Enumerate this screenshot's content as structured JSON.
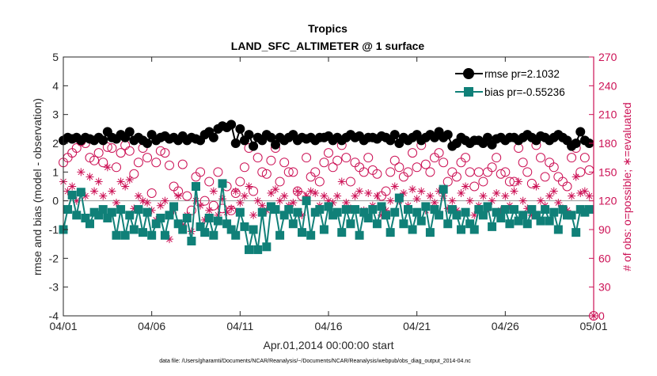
{
  "chart_data": {
    "type": "line",
    "title_line1": "Tropics",
    "title_line2": "LAND_SFC_ALTIMETER @ 1 surface",
    "xlabel": "Apr.01,2014 00:00:00 start",
    "ylabel_left": "rmse and bias (model - observation)",
    "ylabel_right": "# of obs: o=possible; ∗=evaluated",
    "footer": "data file: /Users/gharamti/Documents/NCAR/Reanalysis/~/Documents/NCAR/Reanalysis/webpub/obs_diag_output_2014-04.nc",
    "xlim": [
      0,
      30
    ],
    "x_ticks": [
      {
        "value": 0,
        "label": "04/01"
      },
      {
        "value": 5,
        "label": "04/06"
      },
      {
        "value": 10,
        "label": "04/11"
      },
      {
        "value": 15,
        "label": "04/16"
      },
      {
        "value": 20,
        "label": "04/21"
      },
      {
        "value": 25,
        "label": "04/26"
      },
      {
        "value": 30,
        "label": "05/01"
      }
    ],
    "ylim_left": [
      -4,
      5
    ],
    "y_ticks_left": [
      -4,
      -3,
      -2,
      -1,
      0,
      1,
      2,
      3,
      4,
      5
    ],
    "ylim_right": [
      0,
      270
    ],
    "y_ticks_right": [
      0,
      30,
      60,
      90,
      120,
      150,
      180,
      210,
      240,
      270
    ],
    "zero_line": 0,
    "legend": [
      {
        "name": "rmse",
        "label": "rmse pr=2.1032",
        "marker": "circle"
      },
      {
        "name": "bias",
        "label": "bias pr=-0.55236",
        "marker": "square"
      }
    ],
    "series": [
      {
        "name": "rmse",
        "color": "#000000",
        "axis": "left",
        "x": [
          0,
          0.25,
          0.5,
          0.75,
          1,
          1.25,
          1.5,
          1.75,
          2,
          2.25,
          2.5,
          2.75,
          3,
          3.25,
          3.5,
          3.75,
          4,
          4.25,
          4.5,
          4.75,
          5,
          5.25,
          5.5,
          5.75,
          6,
          6.25,
          6.5,
          6.75,
          7,
          7.25,
          7.5,
          7.75,
          8,
          8.25,
          8.5,
          8.75,
          9,
          9.25,
          9.5,
          9.75,
          10,
          10.25,
          10.5,
          10.75,
          11,
          11.25,
          11.5,
          11.75,
          12,
          12.25,
          12.5,
          12.75,
          13,
          13.25,
          13.5,
          13.75,
          14,
          14.25,
          14.5,
          14.75,
          15,
          15.25,
          15.5,
          15.75,
          16,
          16.25,
          16.5,
          16.75,
          17,
          17.25,
          17.5,
          17.75,
          18,
          18.25,
          18.5,
          18.75,
          19,
          19.25,
          19.5,
          19.75,
          20,
          20.25,
          20.5,
          20.75,
          21,
          21.25,
          21.5,
          21.75,
          22,
          22.25,
          22.5,
          22.75,
          23,
          23.25,
          23.5,
          23.75,
          24,
          24.25,
          24.5,
          24.75,
          25,
          25.25,
          25.5,
          25.75,
          26,
          26.25,
          26.5,
          26.75,
          27,
          27.25,
          27.5,
          27.75,
          28,
          28.25,
          28.5,
          28.75,
          29,
          29.25,
          29.5,
          29.75
        ],
        "y": [
          2.1,
          2.2,
          2.15,
          2.2,
          2.1,
          2.2,
          2.15,
          2.1,
          2.2,
          2.1,
          2.4,
          2.2,
          2.15,
          2.3,
          2.2,
          2.4,
          2.1,
          2.2,
          2.1,
          2.0,
          2.3,
          2.1,
          2.2,
          2.25,
          2.15,
          2.2,
          2.1,
          2.25,
          2.1,
          2.2,
          2.15,
          2.1,
          2.3,
          2.4,
          2.2,
          2.5,
          2.6,
          2.55,
          2.65,
          2.0,
          2.5,
          2.1,
          2.3,
          1.9,
          2.2,
          2.1,
          2.3,
          2.2,
          1.95,
          2.2,
          2.1,
          2.2,
          2.3,
          2.1,
          2.2,
          2.15,
          2.2,
          2.1,
          2.2,
          2.2,
          2.25,
          2.1,
          2.2,
          2.1,
          2.2,
          2.3,
          2.2,
          2.25,
          2.1,
          2.2,
          2.2,
          2.15,
          2.25,
          2.2,
          2.1,
          2.3,
          2.0,
          2.2,
          2.1,
          2.2,
          2.3,
          2.1,
          2.2,
          2.3,
          2.2,
          2.4,
          2.2,
          2.3,
          1.9,
          2.0,
          2.2,
          2.1,
          2.0,
          2.1,
          2.1,
          2.0,
          2.2,
          1.95,
          2.15,
          2.2,
          2.1,
          2.2,
          2.2,
          2.1,
          2.2,
          2.3,
          2.2,
          2.1,
          2.25,
          2.2,
          2.1,
          2.2,
          2.3,
          2.2,
          2.1,
          1.9,
          2.0,
          2.4,
          2.1,
          2.0
        ]
      },
      {
        "name": "bias",
        "color": "#108078",
        "axis": "left",
        "x": [
          0,
          0.25,
          0.5,
          0.75,
          1,
          1.25,
          1.5,
          1.75,
          2,
          2.25,
          2.5,
          2.75,
          3,
          3.25,
          3.5,
          3.75,
          4,
          4.25,
          4.5,
          4.75,
          5,
          5.25,
          5.5,
          5.75,
          6,
          6.25,
          6.5,
          6.75,
          7,
          7.25,
          7.5,
          7.75,
          8,
          8.25,
          8.5,
          8.75,
          9,
          9.25,
          9.5,
          9.75,
          10,
          10.25,
          10.5,
          10.75,
          11,
          11.25,
          11.5,
          11.75,
          12,
          12.25,
          12.5,
          12.75,
          13,
          13.25,
          13.5,
          13.75,
          14,
          14.25,
          14.5,
          14.75,
          15,
          15.25,
          15.5,
          15.75,
          16,
          16.25,
          16.5,
          16.75,
          17,
          17.25,
          17.5,
          17.75,
          18,
          18.25,
          18.5,
          18.75,
          19,
          19.25,
          19.5,
          19.75,
          20,
          20.25,
          20.5,
          20.75,
          21,
          21.25,
          21.5,
          21.75,
          22,
          22.25,
          22.5,
          22.75,
          23,
          23.25,
          23.5,
          23.75,
          24,
          24.25,
          24.5,
          24.75,
          25,
          25.25,
          25.5,
          25.75,
          26,
          26.25,
          26.5,
          26.75,
          27,
          27.25,
          27.5,
          27.75,
          28,
          28.25,
          28.5,
          28.75,
          29,
          29.25,
          29.5,
          29.75
        ],
        "y": [
          -1.0,
          -0.3,
          0.2,
          -0.5,
          0.3,
          -0.6,
          -0.8,
          -0.4,
          -0.5,
          -0.3,
          -0.6,
          -0.4,
          -1.2,
          -0.3,
          -1.2,
          -0.5,
          -1.0,
          -0.3,
          -1.1,
          -0.4,
          -1.2,
          -0.8,
          -0.6,
          -1.2,
          -0.5,
          -0.2,
          -0.8,
          -1.0,
          -0.6,
          -1.4,
          0.5,
          -0.9,
          -1.1,
          -0.6,
          -1.2,
          -0.7,
          0.6,
          -0.8,
          -1.0,
          -1.2,
          -0.4,
          -0.9,
          -1.7,
          -1.0,
          -1.7,
          -0.4,
          -1.6,
          -0.2,
          -0.3,
          -1.2,
          -0.5,
          -0.3,
          -0.8,
          -0.4,
          -1.1,
          0.0,
          -1.2,
          -0.4,
          -0.3,
          -1.0,
          -0.2,
          -0.5,
          -0.4,
          -1.1,
          -0.3,
          -0.8,
          -0.3,
          -1.2,
          -0.4,
          -0.6,
          -0.3,
          -0.8,
          -0.2,
          -0.5,
          -1.1,
          -0.4,
          0.1,
          -0.8,
          -0.3,
          -1.0,
          -0.4,
          -0.7,
          -0.2,
          -1.1,
          -0.3,
          -0.5,
          0.4,
          -0.8,
          -0.3,
          -0.5,
          -1.0,
          -0.4,
          -0.8,
          -1.0,
          -0.3,
          -0.5,
          -0.2,
          -0.9,
          -0.4,
          -0.6,
          -0.3,
          -0.8,
          -0.3,
          -0.7,
          -0.5,
          -0.8,
          -0.3,
          -0.5,
          -0.7,
          -0.3,
          -0.7,
          -0.4,
          -1.0,
          -0.3,
          -0.5,
          -0.5,
          -1.1,
          -0.3,
          -0.4,
          -0.3
        ]
      },
      {
        "name": "possible",
        "color": "#cc1155",
        "axis": "right",
        "marker": "open-circle",
        "x": [
          0,
          0.25,
          0.5,
          0.75,
          1,
          1.25,
          1.5,
          1.75,
          2,
          2.25,
          2.5,
          2.75,
          3,
          3.25,
          3.5,
          3.75,
          4,
          4.25,
          4.5,
          4.75,
          5,
          5.25,
          5.5,
          5.75,
          6,
          6.25,
          6.5,
          6.75,
          7,
          7.25,
          7.5,
          7.75,
          8,
          8.25,
          8.5,
          8.75,
          9,
          9.25,
          9.5,
          9.75,
          10,
          10.25,
          10.5,
          10.75,
          11,
          11.25,
          11.5,
          11.75,
          12,
          12.25,
          12.5,
          12.75,
          13,
          13.25,
          13.5,
          13.75,
          14,
          14.25,
          14.5,
          14.75,
          15,
          15.25,
          15.5,
          15.75,
          16,
          16.25,
          16.5,
          16.75,
          17,
          17.25,
          17.5,
          17.75,
          18,
          18.25,
          18.5,
          18.75,
          19,
          19.25,
          19.5,
          19.75,
          20,
          20.25,
          20.5,
          20.75,
          21,
          21.25,
          21.5,
          21.75,
          22,
          22.25,
          22.5,
          22.75,
          23,
          23.25,
          23.5,
          23.75,
          24,
          24.25,
          24.5,
          24.75,
          25,
          25.25,
          25.5,
          25.75,
          26,
          26.25,
          26.5,
          26.75,
          27,
          27.25,
          27.5,
          27.75,
          28,
          28.25,
          28.5,
          28.75,
          29,
          29.25,
          29.5,
          29.75,
          30
        ],
        "y": [
          160,
          165,
          170,
          175,
          182,
          180,
          165,
          162,
          170,
          160,
          176,
          175,
          155,
          170,
          178,
          172,
          148,
          160,
          175,
          165,
          128,
          160,
          172,
          170,
          157,
          135,
          130,
          158,
          125,
          110,
          145,
          150,
          120,
          140,
          115,
          150,
          112,
          135,
          110,
          128,
          140,
          155,
          175,
          130,
          165,
          150,
          148,
          162,
          175,
          140,
          160,
          150,
          150,
          130,
          125,
          165,
          145,
          150,
          140,
          160,
          170,
          155,
          162,
          178,
          165,
          140,
          160,
          155,
          150,
          165,
          152,
          148,
          125,
          130,
          150,
          162,
          155,
          145,
          150,
          170,
          155,
          178,
          158,
          150,
          165,
          170,
          160,
          140,
          150,
          145,
          160,
          165,
          150,
          135,
          150,
          140,
          150,
          155,
          165,
          148,
          150,
          140,
          140,
          175,
          160,
          150,
          138,
          178,
          165,
          145,
          160,
          155,
          145,
          140,
          135,
          165,
          175,
          150,
          165,
          152,
          0
        ]
      },
      {
        "name": "evaluated",
        "color": "#cc1155",
        "axis": "right",
        "marker": "asterisk",
        "x": [
          0,
          0.25,
          0.5,
          0.75,
          1,
          1.25,
          1.5,
          1.75,
          2,
          2.25,
          2.5,
          2.75,
          3,
          3.25,
          3.5,
          3.75,
          4,
          4.25,
          4.5,
          4.75,
          5,
          5.25,
          5.5,
          5.75,
          6,
          6.25,
          6.5,
          6.75,
          7,
          7.25,
          7.5,
          7.75,
          8,
          8.25,
          8.5,
          8.75,
          9,
          9.25,
          9.5,
          9.75,
          10,
          10.25,
          10.5,
          10.75,
          11,
          11.25,
          11.5,
          11.75,
          12,
          12.25,
          12.5,
          12.75,
          13,
          13.25,
          13.5,
          13.75,
          14,
          14.25,
          14.5,
          14.75,
          15,
          15.25,
          15.5,
          15.75,
          16,
          16.25,
          16.5,
          16.75,
          17,
          17.25,
          17.5,
          17.75,
          18,
          18.25,
          18.5,
          18.75,
          19,
          19.25,
          19.5,
          19.75,
          20,
          20.25,
          20.5,
          20.75,
          21,
          21.25,
          21.5,
          21.75,
          22,
          22.25,
          22.5,
          22.75,
          23,
          23.25,
          23.5,
          23.75,
          24,
          24.25,
          24.5,
          24.75,
          25,
          25.25,
          25.5,
          25.75,
          26,
          26.25,
          26.5,
          26.75,
          27,
          27.25,
          27.5,
          27.75,
          28,
          28.25,
          28.5,
          28.75,
          29,
          29.25,
          29.5,
          29.75,
          30
        ],
        "y": [
          140,
          130,
          135,
          120,
          150,
          125,
          145,
          130,
          140,
          125,
          155,
          130,
          118,
          140,
          135,
          142,
          112,
          125,
          120,
          118,
          110,
          100,
          115,
          120,
          80,
          110,
          125,
          95,
          105,
          88,
          120,
          115,
          100,
          110,
          130,
          105,
          122,
          108,
          112,
          130,
          118,
          125,
          135,
          105,
          120,
          115,
          110,
          128,
          132,
          120,
          125,
          115,
          118,
          130,
          105,
          125,
          130,
          128,
          115,
          125,
          120,
          118,
          125,
          140,
          118,
          112,
          125,
          130,
          110,
          128,
          115,
          125,
          105,
          110,
          120,
          135,
          120,
          128,
          115,
          132,
          122,
          130,
          110,
          125,
          118,
          130,
          125,
          112,
          120,
          110,
          128,
          135,
          120,
          105,
          115,
          125,
          112,
          120,
          128,
          110,
          125,
          115,
          130,
          140,
          120,
          112,
          105,
          135,
          120,
          115,
          125,
          130,
          118,
          112,
          110,
          125,
          145,
          128,
          130,
          125,
          0
        ]
      }
    ]
  }
}
